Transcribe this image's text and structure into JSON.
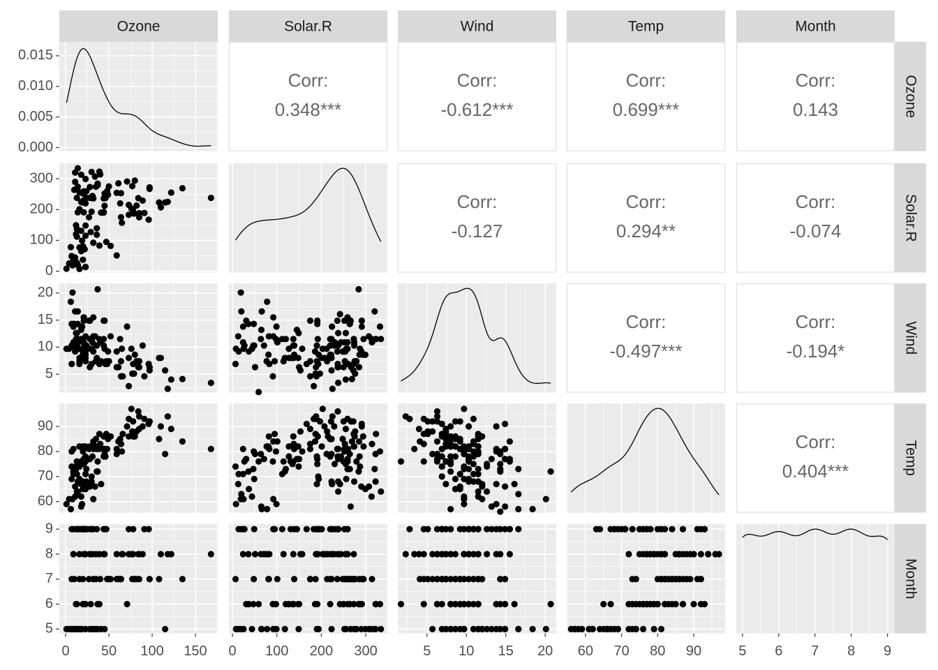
{
  "chart_data": {
    "type": "pairs",
    "variables": [
      {
        "name": "Ozone",
        "values": [
          41,
          36,
          12,
          18,
          null,
          28,
          23,
          19,
          8,
          null,
          7,
          16,
          11,
          14,
          18,
          14,
          34,
          6,
          30,
          11,
          1,
          11,
          4,
          32,
          null,
          null,
          null,
          23,
          45,
          115,
          37,
          null,
          null,
          null,
          null,
          null,
          null,
          29,
          null,
          71,
          39,
          null,
          null,
          23,
          null,
          null,
          21,
          37,
          20,
          12,
          13,
          null,
          null,
          null,
          null,
          null,
          null,
          null,
          null,
          null,
          null,
          135,
          49,
          32,
          null,
          64,
          40,
          77,
          97,
          97,
          85,
          null,
          10,
          27,
          null,
          7,
          48,
          35,
          61,
          79,
          63,
          16,
          null,
          null,
          80,
          108,
          20,
          52,
          82,
          50,
          64,
          59,
          39,
          9,
          16,
          78,
          35,
          66,
          122,
          89,
          110,
          null,
          null,
          44,
          28,
          65,
          null,
          22,
          59,
          23,
          31,
          44,
          21,
          9,
          null,
          45,
          168,
          73,
          null,
          76,
          118,
          84,
          85,
          96,
          78,
          73,
          91,
          47,
          32,
          20,
          23,
          21,
          24,
          44,
          21,
          28,
          9,
          13,
          46,
          18,
          13,
          24,
          16,
          13,
          23,
          36,
          7,
          14,
          30,
          null,
          14,
          18,
          20
        ],
        "xlim": [
          -7.3,
          175.8
        ],
        "xticks": [
          0,
          50,
          100,
          150
        ]
      },
      {
        "name": "Solar.R",
        "values": [
          190,
          118,
          149,
          313,
          null,
          null,
          299,
          99,
          19,
          194,
          null,
          256,
          290,
          274,
          65,
          334,
          307,
          78,
          322,
          44,
          8,
          320,
          25,
          92,
          66,
          266,
          null,
          13,
          252,
          223,
          279,
          286,
          287,
          242,
          186,
          220,
          264,
          127,
          273,
          291,
          323,
          259,
          250,
          148,
          332,
          322,
          191,
          284,
          37,
          120,
          137,
          150,
          59,
          91,
          250,
          135,
          127,
          47,
          98,
          31,
          138,
          269,
          248,
          236,
          101,
          175,
          314,
          276,
          267,
          272,
          175,
          139,
          264,
          175,
          291,
          48,
          260,
          274,
          285,
          187,
          220,
          7,
          258,
          295,
          294,
          223,
          81,
          82,
          213,
          275,
          253,
          254,
          83,
          24,
          77,
          null,
          null,
          null,
          255,
          229,
          207,
          222,
          137,
          192,
          273,
          157,
          64,
          71,
          51,
          115,
          244,
          190,
          259,
          36,
          255,
          212,
          238,
          215,
          153,
          203,
          225,
          237,
          188,
          167,
          197,
          183,
          189,
          95,
          92,
          252,
          220,
          230,
          259,
          236,
          259,
          238,
          24,
          112,
          237,
          224,
          27,
          238,
          201,
          238,
          14,
          139,
          49,
          20,
          193,
          145,
          191,
          131,
          223
        ],
        "xlim": [
          -7.9,
          348.5
        ],
        "xticks": [
          0,
          100,
          200,
          300
        ],
        "ylim": [
          -4.5,
          350
        ],
        "yticks": [
          0,
          100,
          200,
          300
        ]
      },
      {
        "name": "Wind",
        "values": [
          7.4,
          8,
          12.6,
          11.5,
          14.3,
          14.9,
          8.6,
          13.8,
          20.1,
          8.6,
          6.9,
          9.7,
          9.2,
          10.9,
          13.2,
          11.5,
          12,
          18.4,
          11.5,
          9.7,
          9.7,
          16.6,
          9.7,
          12,
          16.6,
          14.9,
          8,
          12,
          14.9,
          5.7,
          7.4,
          8.6,
          9.7,
          16.1,
          9.2,
          8.6,
          14.3,
          9.7,
          6.9,
          13.8,
          11.5,
          10.9,
          9.2,
          8,
          13.8,
          11.5,
          14.9,
          20.7,
          9.2,
          11.5,
          10.3,
          6.3,
          1.7,
          4.6,
          6.3,
          8,
          8,
          10.3,
          11.5,
          14.9,
          8,
          4.1,
          9.2,
          9.2,
          10.9,
          4.6,
          10.9,
          5.1,
          6.3,
          5.7,
          7.4,
          8.6,
          14.3,
          14.9,
          14.9,
          14.3,
          6.9,
          10.3,
          6.3,
          5.1,
          11.5,
          6.9,
          9.7,
          11.5,
          8.6,
          8,
          8.6,
          12,
          7.4,
          7.4,
          7.4,
          9.2,
          6.9,
          13.8,
          7.4,
          6.9,
          7.4,
          4.6,
          4,
          10.3,
          8,
          8.6,
          11.5,
          11.5,
          11.5,
          9.7,
          11.5,
          10.3,
          6.3,
          7.4,
          10.9,
          10.3,
          15.5,
          14.3,
          12.6,
          9.7,
          3.4,
          8,
          5.7,
          9.7,
          2.3,
          6.3,
          6.3,
          6.9,
          5.1,
          2.8,
          4.6,
          7.4,
          15.5,
          10.9,
          10.3,
          10.9,
          9.7,
          14.9,
          15.5,
          6.3,
          10.9,
          11.5,
          6.9,
          13.8,
          10.3,
          10.3,
          8,
          12.6,
          9.2,
          10.3,
          10.3,
          16.6,
          6.9,
          13.2,
          14.3,
          8,
          11.5
        ],
        "xlim": [
          1.3,
          21.4
        ],
        "xticks": [
          5,
          10,
          15,
          20
        ],
        "ylim": [
          1.6,
          21.8
        ],
        "yticks": [
          5,
          10,
          15,
          20
        ]
      },
      {
        "name": "Temp",
        "values": [
          67,
          72,
          74,
          62,
          56,
          66,
          65,
          59,
          61,
          69,
          74,
          69,
          66,
          68,
          58,
          64,
          66,
          57,
          68,
          62,
          59,
          73,
          61,
          61,
          57,
          58,
          57,
          67,
          81,
          79,
          76,
          78,
          74,
          67,
          84,
          85,
          79,
          82,
          87,
          90,
          87,
          93,
          92,
          82,
          80,
          79,
          77,
          72,
          65,
          73,
          76,
          77,
          76,
          76,
          76,
          75,
          78,
          73,
          80,
          77,
          83,
          84,
          85,
          81,
          84,
          83,
          83,
          88,
          92,
          92,
          89,
          82,
          73,
          81,
          91,
          80,
          81,
          82,
          84,
          87,
          85,
          74,
          81,
          82,
          86,
          85,
          82,
          86,
          88,
          86,
          83,
          81,
          81,
          81,
          82,
          86,
          85,
          87,
          89,
          90,
          90,
          92,
          86,
          86,
          82,
          80,
          79,
          77,
          79,
          76,
          78,
          78,
          77,
          72,
          75,
          79,
          81,
          86,
          88,
          97,
          94,
          96,
          94,
          91,
          92,
          93,
          93,
          87,
          84,
          80,
          78,
          75,
          73,
          81,
          76,
          77,
          71,
          71,
          78,
          67,
          76,
          68,
          82,
          64,
          71,
          81,
          69,
          63,
          70,
          77,
          75,
          76,
          68
        ],
        "xlim": [
          54.8,
          98.7
        ],
        "xticks": [
          60,
          70,
          80,
          90
        ],
        "ylim": [
          55.6,
          99.2
        ],
        "yticks": [
          60,
          70,
          80,
          90
        ]
      },
      {
        "name": "Month",
        "values": [
          5,
          5,
          5,
          5,
          5,
          5,
          5,
          5,
          5,
          5,
          5,
          5,
          5,
          5,
          5,
          5,
          5,
          5,
          5,
          5,
          5,
          5,
          5,
          5,
          5,
          5,
          5,
          5,
          5,
          5,
          5,
          6,
          6,
          6,
          6,
          6,
          6,
          6,
          6,
          6,
          6,
          6,
          6,
          6,
          6,
          6,
          6,
          6,
          6,
          6,
          6,
          6,
          6,
          6,
          6,
          6,
          6,
          6,
          6,
          6,
          6,
          7,
          7,
          7,
          7,
          7,
          7,
          7,
          7,
          7,
          7,
          7,
          7,
          7,
          7,
          7,
          7,
          7,
          7,
          7,
          7,
          7,
          7,
          7,
          7,
          7,
          7,
          7,
          7,
          7,
          7,
          7,
          8,
          8,
          8,
          8,
          8,
          8,
          8,
          8,
          8,
          8,
          8,
          8,
          8,
          8,
          8,
          8,
          8,
          8,
          8,
          8,
          8,
          8,
          8,
          8,
          8,
          8,
          8,
          8,
          8,
          8,
          8,
          9,
          9,
          9,
          9,
          9,
          9,
          9,
          9,
          9,
          9,
          9,
          9,
          9,
          9,
          9,
          9,
          9,
          9,
          9,
          9,
          9,
          9,
          9,
          9,
          9,
          9,
          9,
          9,
          9,
          9
        ],
        "xlim": [
          4.83,
          9.2
        ],
        "xticks": [
          5,
          6,
          7,
          8,
          9
        ],
        "ylim": [
          4.83,
          9.2
        ],
        "yticks": [
          5,
          6,
          7,
          8,
          9
        ]
      }
    ],
    "density_ylim": [
      -0.00057,
      0.01727
    ],
    "density_yticks": [
      {
        "value": 0,
        "label": "0.000"
      },
      {
        "value": 0.005,
        "label": "0.005"
      },
      {
        "value": 0.01,
        "label": "0.010"
      },
      {
        "value": 0.015,
        "label": "0.015"
      }
    ],
    "corr_title": "Corr:",
    "correlations": [
      [
        null,
        {
          "value": 0.348,
          "label": "0.348***"
        },
        {
          "value": -0.612,
          "label": "-0.612***"
        },
        {
          "value": 0.699,
          "label": "0.699***"
        },
        {
          "value": 0.143,
          "label": "0.143"
        }
      ],
      [
        null,
        null,
        {
          "value": -0.127,
          "label": "-0.127"
        },
        {
          "value": 0.294,
          "label": "0.294**"
        },
        {
          "value": -0.074,
          "label": "-0.074"
        }
      ],
      [
        null,
        null,
        null,
        {
          "value": -0.497,
          "label": "-0.497***"
        },
        {
          "value": -0.194,
          "label": "-0.194*"
        }
      ],
      [
        null,
        null,
        null,
        null,
        {
          "value": 0.404,
          "label": "0.404***"
        }
      ],
      [
        null,
        null,
        null,
        null,
        null
      ]
    ],
    "point_color": "#000000",
    "line_color": "#000000",
    "panel_color": "#ebebeb",
    "strip_color": "#d9d9d9",
    "grid": true
  }
}
